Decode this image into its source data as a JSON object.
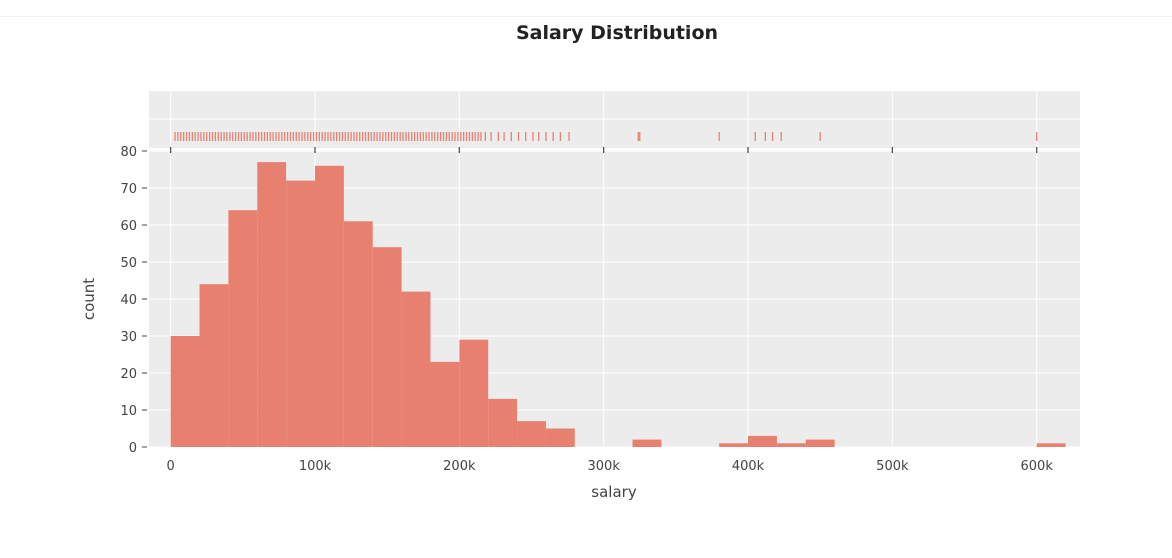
{
  "chart_data": {
    "type": "bar",
    "title": "Salary Distribution",
    "xlabel": "salary",
    "ylabel": "count",
    "xlim": [
      -15000,
      630000
    ],
    "ylim": [
      0,
      80
    ],
    "x_ticks": [
      0,
      100000,
      200000,
      300000,
      400000,
      500000,
      600000
    ],
    "x_tick_labels": [
      "0",
      "100k",
      "200k",
      "300k",
      "400k",
      "500k",
      "600k"
    ],
    "y_ticks": [
      0,
      10,
      20,
      30,
      40,
      50,
      60,
      70,
      80
    ],
    "y_tick_labels": [
      "0",
      "10",
      "20",
      "30",
      "40",
      "50",
      "60",
      "70",
      "80"
    ],
    "bin_width": 20000,
    "bins": [
      {
        "start": 0,
        "end": 20000,
        "count": 30
      },
      {
        "start": 20000,
        "end": 40000,
        "count": 44
      },
      {
        "start": 40000,
        "end": 60000,
        "count": 64
      },
      {
        "start": 60000,
        "end": 80000,
        "count": 77
      },
      {
        "start": 80000,
        "end": 100000,
        "count": 72
      },
      {
        "start": 100000,
        "end": 120000,
        "count": 76
      },
      {
        "start": 120000,
        "end": 140000,
        "count": 61
      },
      {
        "start": 140000,
        "end": 160000,
        "count": 54
      },
      {
        "start": 160000,
        "end": 180000,
        "count": 42
      },
      {
        "start": 180000,
        "end": 200000,
        "count": 23
      },
      {
        "start": 200000,
        "end": 220000,
        "count": 29
      },
      {
        "start": 220000,
        "end": 240000,
        "count": 13
      },
      {
        "start": 240000,
        "end": 260000,
        "count": 7
      },
      {
        "start": 260000,
        "end": 280000,
        "count": 5
      },
      {
        "start": 320000,
        "end": 340000,
        "count": 2
      },
      {
        "start": 380000,
        "end": 400000,
        "count": 1
      },
      {
        "start": 400000,
        "end": 420000,
        "count": 3
      },
      {
        "start": 420000,
        "end": 440000,
        "count": 1
      },
      {
        "start": 440000,
        "end": 460000,
        "count": 2
      },
      {
        "start": 600000,
        "end": 620000,
        "count": 1
      }
    ],
    "rug_values": [
      3000,
      5000,
      7000,
      9000,
      11000,
      13000,
      15000,
      17000,
      19000,
      21000,
      23000,
      25000,
      27000,
      29000,
      31000,
      33000,
      35000,
      37000,
      39000,
      41000,
      43000,
      45000,
      47000,
      49000,
      51000,
      53000,
      55000,
      57000,
      59000,
      61000,
      63000,
      65000,
      67000,
      69000,
      71000,
      73000,
      75000,
      77000,
      79000,
      81000,
      83000,
      85000,
      87000,
      89000,
      91000,
      93000,
      95000,
      97000,
      99000,
      101000,
      103000,
      105000,
      107000,
      109000,
      111000,
      113000,
      115000,
      117000,
      119000,
      121000,
      123000,
      125000,
      127000,
      129000,
      131000,
      133000,
      135000,
      137000,
      139000,
      141000,
      143000,
      145000,
      147000,
      149000,
      151000,
      153000,
      155000,
      157000,
      159000,
      161000,
      163000,
      165000,
      167000,
      169000,
      171000,
      173000,
      175000,
      177000,
      179000,
      181000,
      183000,
      185000,
      187000,
      189000,
      191000,
      193000,
      195000,
      197000,
      199000,
      201000,
      203000,
      205000,
      207000,
      209000,
      211000,
      213000,
      215000,
      218000,
      222000,
      227000,
      231000,
      236000,
      241000,
      246000,
      251000,
      255000,
      260000,
      265000,
      270000,
      276000,
      324000,
      325000,
      380000,
      405000,
      412000,
      417000,
      423000,
      450000,
      600000
    ],
    "color": "#e8806f",
    "plot_background": "#ececec",
    "grid": true,
    "marginal": "rug"
  }
}
